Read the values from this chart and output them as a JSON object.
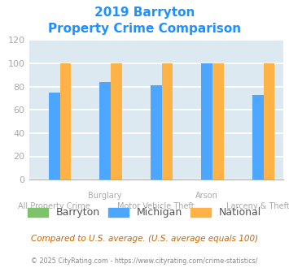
{
  "title_line1": "2019 Barryton",
  "title_line2": "Property Crime Comparison",
  "title_color": "#1e90ff",
  "categories": [
    "All Property Crime",
    "Burglary",
    "Motor Vehicle Theft",
    "Arson",
    "Larceny & Theft"
  ],
  "barryton_values": [
    0,
    0,
    0,
    0,
    0
  ],
  "michigan_values": [
    75,
    84,
    81,
    100,
    73
  ],
  "national_values": [
    100,
    100,
    100,
    100,
    100
  ],
  "barryton_color": "#7dc36b",
  "michigan_color": "#4da6ff",
  "national_color": "#ffb347",
  "ylim": [
    0,
    120
  ],
  "yticks": [
    0,
    20,
    40,
    60,
    80,
    100,
    120
  ],
  "bg_color": "#dce9f0",
  "grid_color": "#ffffff",
  "bar_width": 0.22,
  "legend_labels": [
    "Barryton",
    "Michigan",
    "National"
  ],
  "footnote1": "Compared to U.S. average. (U.S. average equals 100)",
  "footnote2": "© 2025 CityRating.com - https://www.cityrating.com/crime-statistics/",
  "footnote1_color": "#cc6600",
  "footnote2_color": "#888888",
  "label_color": "#aaaaaa",
  "tick_color": "#aaaaaa"
}
